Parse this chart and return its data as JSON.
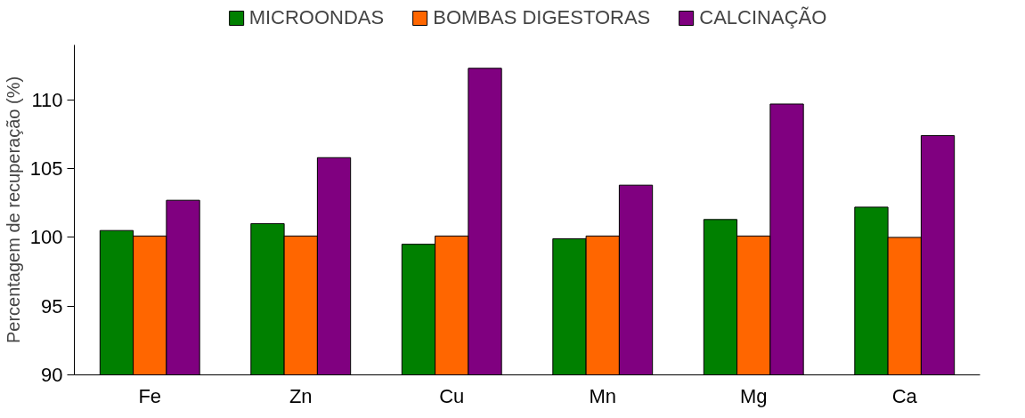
{
  "chart_data": {
    "type": "bar",
    "ylabel": "Percentagem de recuperação (%)",
    "categories": [
      "Fe",
      "Zn",
      "Cu",
      "Mn",
      "Mg",
      "Ca"
    ],
    "series": [
      {
        "name": "MICROONDAS",
        "color": "#008000",
        "values": [
          100.5,
          101.0,
          99.5,
          99.9,
          101.3,
          102.2
        ]
      },
      {
        "name": "BOMBAS DIGESTORAS",
        "color": "#ff6600",
        "values": [
          100.1,
          100.1,
          100.1,
          100.1,
          100.1,
          100.0
        ]
      },
      {
        "name": "CALCINAÇÃO",
        "color": "#800080",
        "values": [
          102.7,
          105.8,
          112.3,
          103.8,
          109.7,
          107.4
        ]
      }
    ],
    "ylim": [
      90,
      114
    ],
    "yticks": [
      90,
      95,
      100,
      105,
      110
    ],
    "grid": false,
    "legend": "top"
  }
}
